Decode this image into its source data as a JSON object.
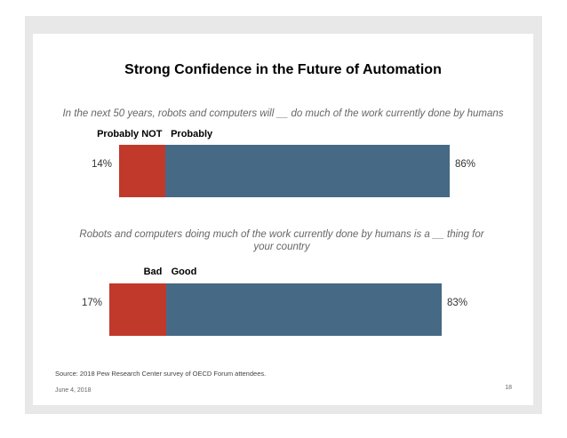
{
  "slide": {
    "title": "Strong Confidence in the Future of Automation",
    "source": "Source: 2018 Pew Research Center survey of OECD Forum attendees.",
    "date": "June 4, 2018",
    "page_number": "18"
  },
  "colors": {
    "negative": "#c0392b",
    "positive": "#466a85"
  },
  "chart_data": [
    {
      "type": "bar",
      "orientation": "horizontal-stacked",
      "title": "In the next 50 years, robots and computers will __ do much of the work currently done by humans",
      "categories": [
        "Probably NOT",
        "Probably"
      ],
      "values": [
        14,
        86
      ],
      "value_labels": [
        "14%",
        "86%"
      ],
      "xlim": [
        0,
        100
      ]
    },
    {
      "type": "bar",
      "orientation": "horizontal-stacked",
      "title": "Robots and computers doing much of the work currently done by humans is a __ thing for your country",
      "categories": [
        "Bad",
        "Good"
      ],
      "values": [
        17,
        83
      ],
      "value_labels": [
        "17%",
        "83%"
      ],
      "xlim": [
        0,
        100
      ]
    }
  ]
}
